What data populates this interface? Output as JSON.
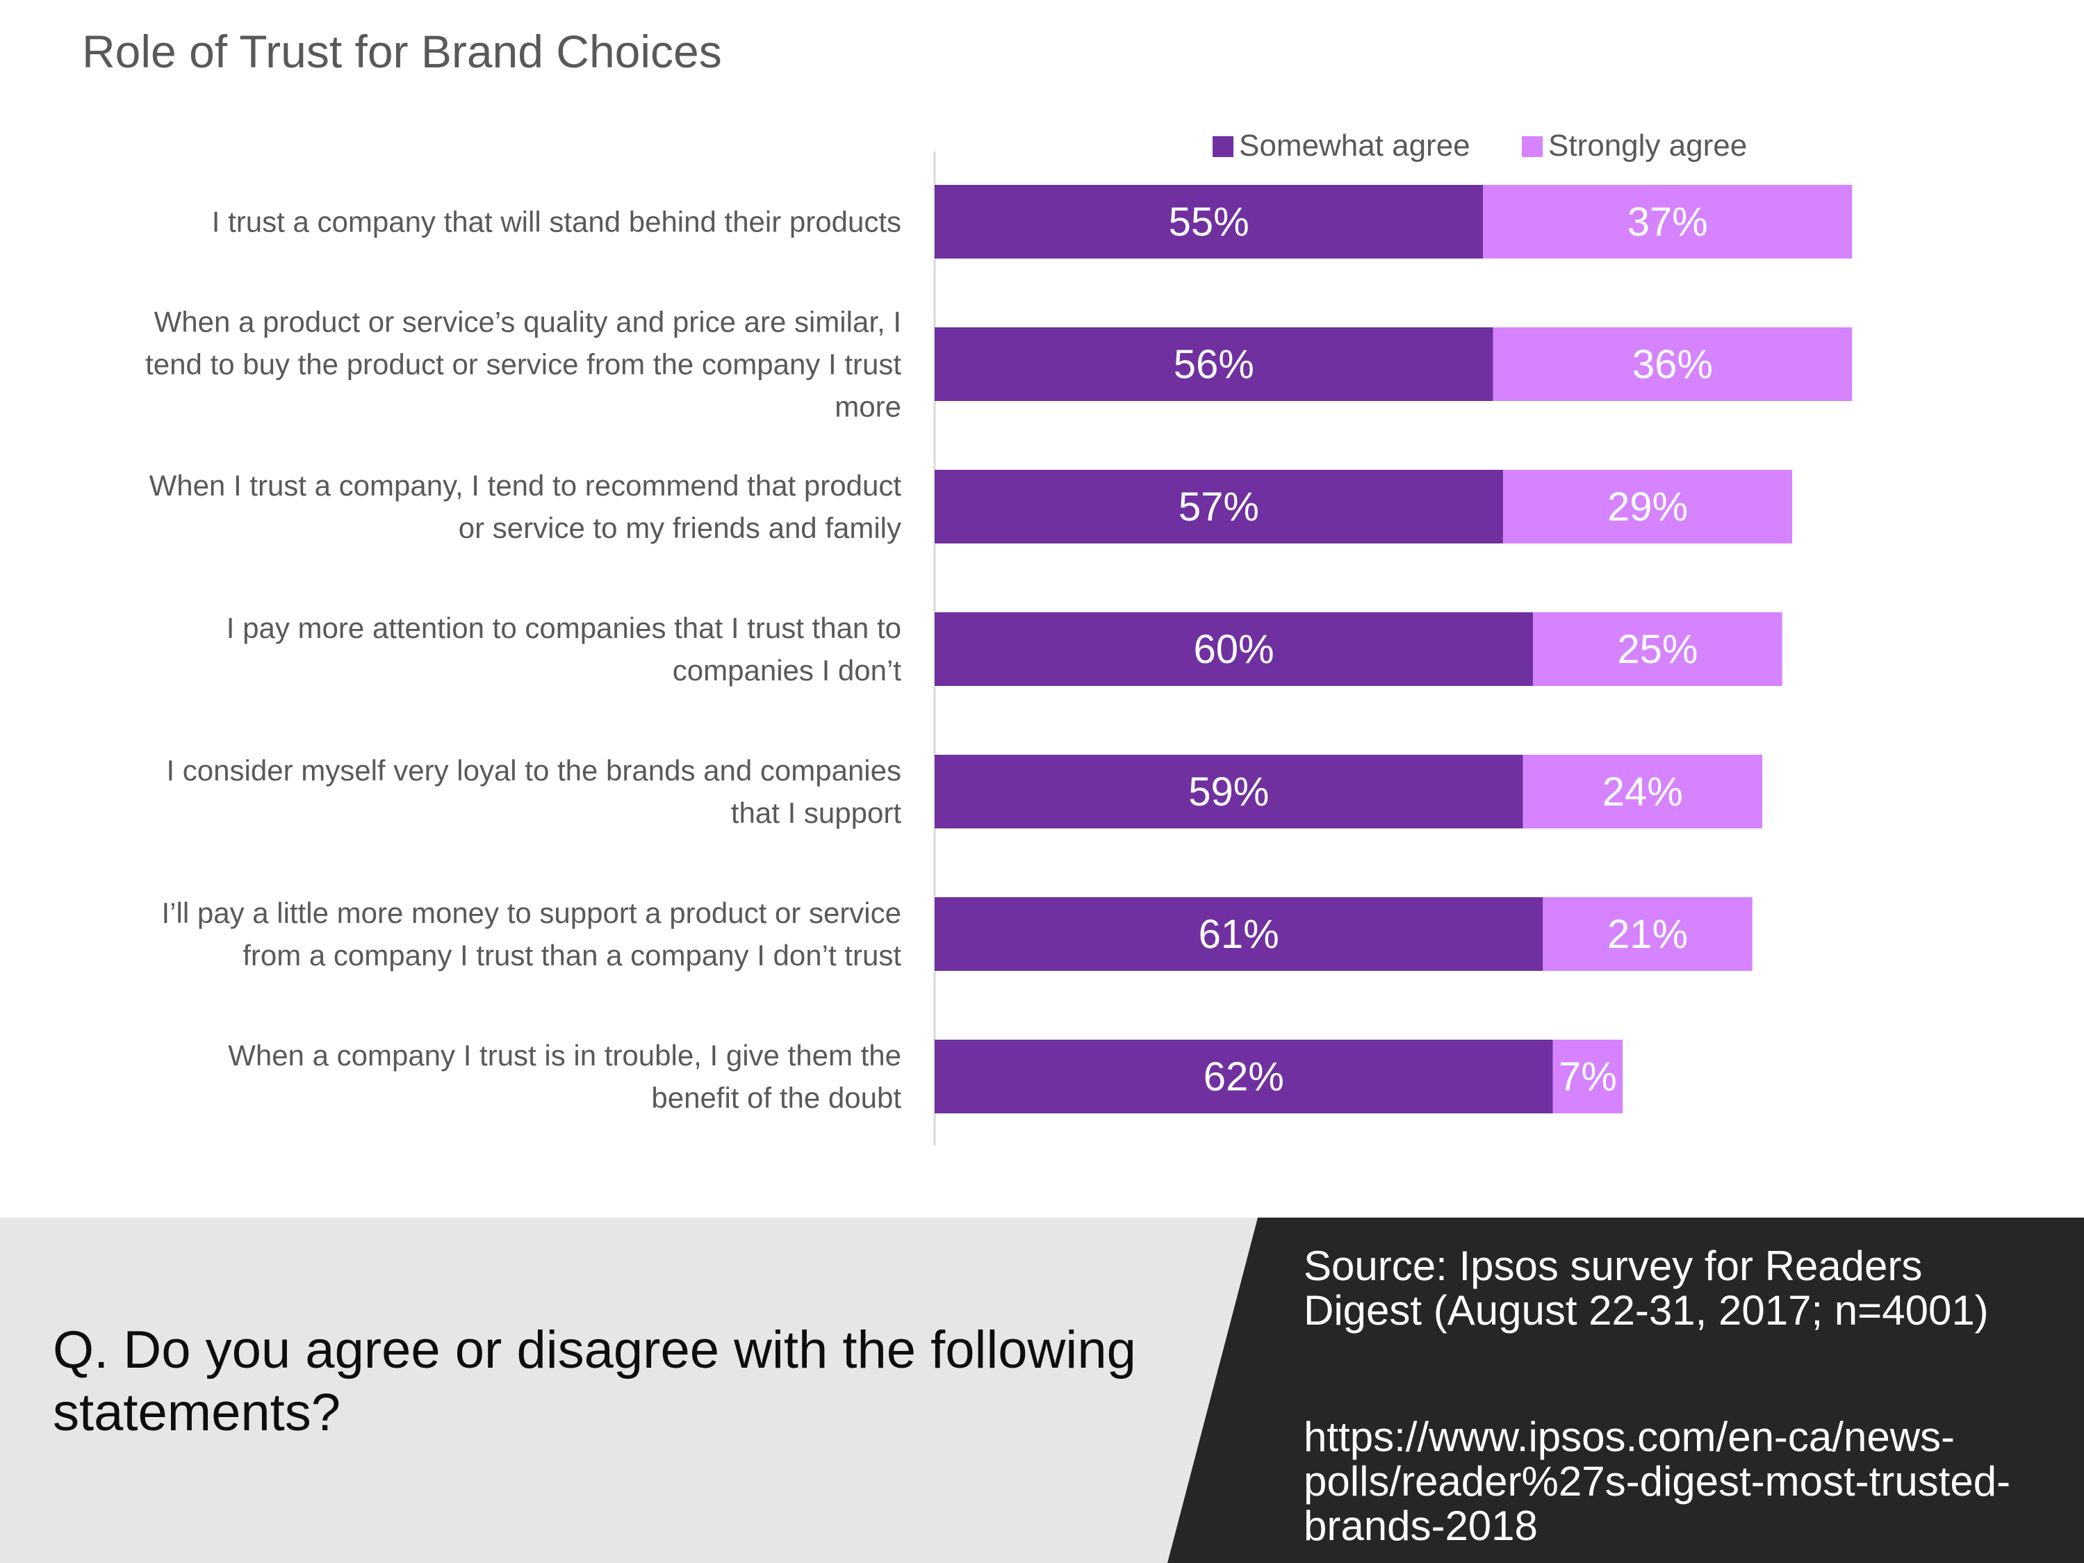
{
  "title": "Role of Trust for Brand Choices",
  "chart_data": {
    "type": "bar",
    "orientation": "horizontal",
    "stacked": true,
    "legend_position": "top",
    "categories": [
      "I trust a company that will stand behind their products",
      "When a product or service’s quality and price are similar, I tend to buy the product or service from the company I trust more",
      "When I trust a company, I tend to recommend that product or service to my friends and family",
      "I pay more attention to companies that I trust than to companies I don’t",
      "I consider myself very loyal to the brands and companies that I support",
      "I’ll pay a little more money to support a product or service from a company I trust than a company I don’t trust",
      "When a company I trust is in trouble, I give them the benefit of the doubt"
    ],
    "category_lines": [
      [
        "I trust a company that will stand behind their products"
      ],
      [
        "When a product or service’s quality and price are similar, I",
        "tend to buy the product or service from the company I trust",
        "more"
      ],
      [
        "When I trust a company, I tend to recommend that product",
        "or service to my friends and family"
      ],
      [
        "I pay more attention to companies that I trust than to",
        "companies I don’t"
      ],
      [
        "I consider myself very loyal to the brands and companies",
        "that I support"
      ],
      [
        "I’ll pay a little more money to support a product or service",
        "from a company I trust than a company I don’t trust"
      ],
      [
        "When a company I trust is in trouble, I give them the",
        "benefit of the doubt"
      ]
    ],
    "series": [
      {
        "name": "Somewhat agree",
        "color": "#7030a0",
        "values": [
          55,
          56,
          57,
          60,
          59,
          61,
          62
        ],
        "labels": [
          "55%",
          "56%",
          "57%",
          "60%",
          "59%",
          "61%",
          "62%"
        ]
      },
      {
        "name": "Strongly agree",
        "color": "#d683ff",
        "values": [
          37,
          36,
          29,
          25,
          24,
          21,
          7
        ],
        "labels": [
          "37%",
          "36%",
          "29%",
          "25%",
          "24%",
          "21%",
          "7%"
        ]
      }
    ],
    "xlim": [
      0,
      100
    ],
    "axis_color": "#d9d9d9",
    "grid": false
  },
  "footer": {
    "question_lines": [
      "Q. Do you agree or disagree with the following",
      "statements?"
    ],
    "source_lines": [
      "Source:  Ipsos survey for Readers",
      "Digest (August 22-31, 2017; n=4001)"
    ],
    "url_lines": [
      "https://www.ipsos.com/en-ca/news-",
      "polls/reader%27s-digest-most-trusted-",
      "brands-2018"
    ]
  }
}
